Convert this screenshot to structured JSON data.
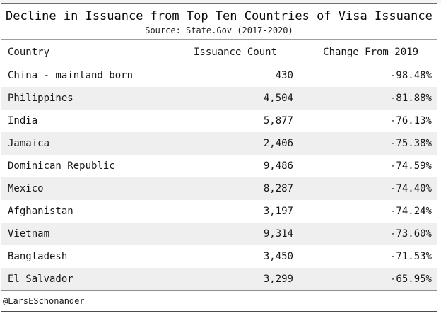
{
  "table": {
    "title": "Decline in Issuance from Top Ten Countries of Visa Issuance",
    "subtitle": "Source: State.Gov (2017-2020)",
    "columns": [
      "Country",
      "Issuance Count",
      "Change From 2019"
    ],
    "rows": [
      [
        "China - mainland born",
        "430",
        "-98.48%"
      ],
      [
        "Philippines",
        "4,504",
        "-81.88%"
      ],
      [
        "India",
        "5,877",
        "-76.13%"
      ],
      [
        "Jamaica",
        "2,406",
        "-75.38%"
      ],
      [
        "Dominican Republic",
        "9,486",
        "-74.59%"
      ],
      [
        "Mexico",
        "8,287",
        "-74.40%"
      ],
      [
        "Afghanistan",
        "3,197",
        "-74.24%"
      ],
      [
        "Vietnam",
        "9,314",
        "-73.60%"
      ],
      [
        "Bangladesh",
        "3,450",
        "-71.53%"
      ],
      [
        "El Salvador",
        "3,299",
        "-65.95%"
      ]
    ],
    "footer": "@LarsESchonander",
    "colors": {
      "stripe": "#efefef",
      "rule_top": "#6e6e6e",
      "rule_mid": "#9e9e9e",
      "rule_light": "#8f8f8f",
      "rule_bottom": "#4d4d4d"
    }
  },
  "chart_data": {
    "type": "table",
    "title": "Decline in Issuance from Top Ten Countries of Visa Issuance",
    "subtitle": "Source: State.Gov (2017-2020)",
    "columns": [
      "Country",
      "Issuance Count",
      "Change From 2019"
    ],
    "rows": [
      [
        "China - mainland born",
        430,
        -98.48
      ],
      [
        "Philippines",
        4504,
        -81.88
      ],
      [
        "India",
        5877,
        -76.13
      ],
      [
        "Jamaica",
        2406,
        -75.38
      ],
      [
        "Dominican Republic",
        9486,
        -74.59
      ],
      [
        "Mexico",
        8287,
        -74.4
      ],
      [
        "Afghanistan",
        3197,
        -74.24
      ],
      [
        "Vietnam",
        9314,
        -73.6
      ],
      [
        "Bangladesh",
        3450,
        -71.53
      ],
      [
        "El Salvador",
        3299,
        -65.95
      ]
    ],
    "footer": "@LarsESchonander",
    "layout": {
      "row_striping": true,
      "value_alignment": "right",
      "country_alignment": "left"
    }
  }
}
